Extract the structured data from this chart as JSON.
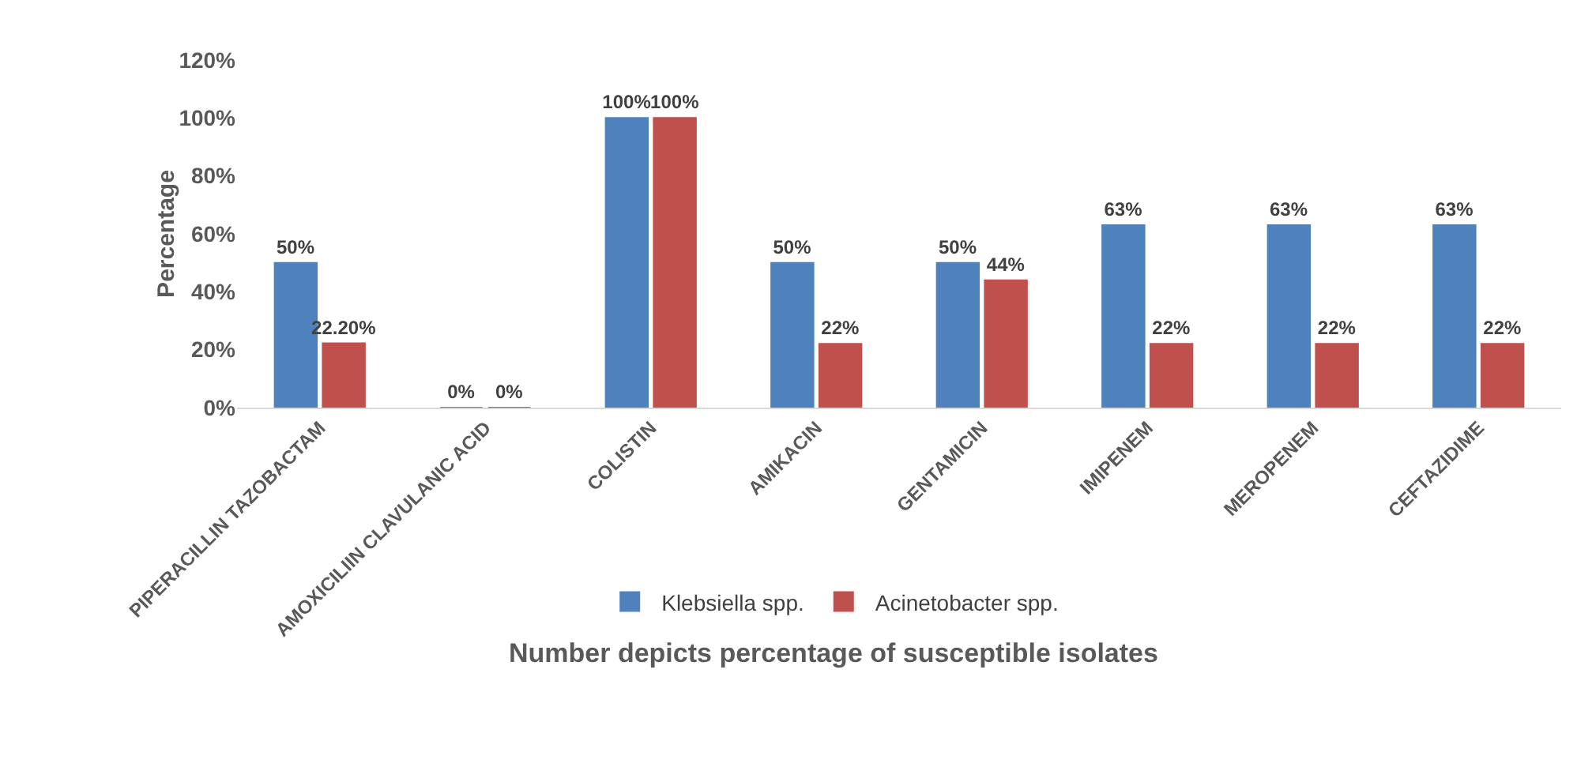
{
  "chart_data": {
    "type": "bar",
    "xlabel": "Number depicts percentage of susceptible isolates",
    "ylabel": "Percentage",
    "categories": [
      "PIPERACILLIN TAZOBACTAM",
      "AMOXICILIIN CLAVULANIC ACID",
      "COLISTIN",
      "AMIKACIN",
      "GENTAMICIN",
      "IMIPENEM",
      "MEROPENEM",
      "CEFTAZIDIME"
    ],
    "series": [
      {
        "name": "Klebsiella spp.",
        "color": "#4f81bd",
        "values": [
          50,
          0,
          100,
          50,
          50,
          63,
          63,
          63
        ],
        "value_labels": [
          "50%",
          "0%",
          "100%",
          "50%",
          "50%",
          "63%",
          "63%",
          "63%"
        ]
      },
      {
        "name": "Acinetobacter spp.",
        "color": "#c0504d",
        "values": [
          22.2,
          0,
          100,
          22,
          44,
          22,
          22,
          22
        ],
        "value_labels": [
          "22.20%",
          "0%",
          "100%",
          "22%",
          "44%",
          "22%",
          "22%",
          "22%"
        ]
      }
    ],
    "ylim": [
      0,
      120
    ],
    "yticks": [
      {
        "value": 0,
        "label": "0%"
      },
      {
        "value": 20,
        "label": "20%"
      },
      {
        "value": 40,
        "label": "40%"
      },
      {
        "value": 60,
        "label": "60%"
      },
      {
        "value": 80,
        "label": "80%"
      },
      {
        "value": 100,
        "label": "100%"
      },
      {
        "value": 120,
        "label": "120%"
      }
    ],
    "grid": false,
    "legend": "bottom"
  }
}
